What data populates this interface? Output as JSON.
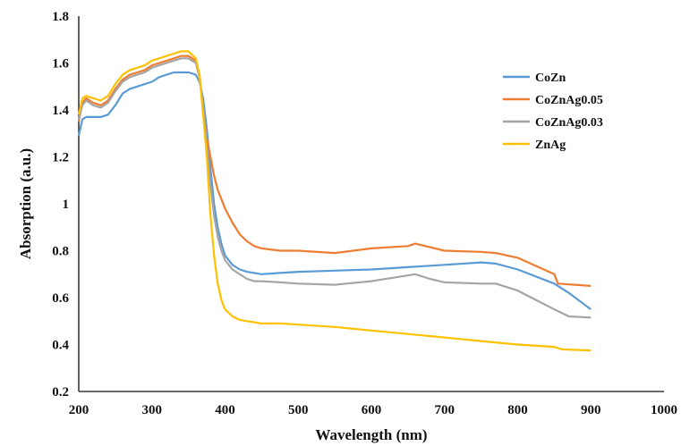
{
  "chart_data": {
    "type": "line",
    "title": "",
    "xlabel": "Wavelength (nm)",
    "ylabel": "Absorption (a.u.)",
    "xlim": [
      200,
      1000
    ],
    "ylim": [
      0.2,
      1.8
    ],
    "xticks": [
      "200",
      "300",
      "400",
      "500",
      "600",
      "700",
      "800",
      "900",
      "1000"
    ],
    "yticks": [
      "0.2",
      "0.4",
      "0.6",
      "0.8",
      "1",
      "1.2",
      "1.4",
      "1.6",
      "1.8"
    ],
    "grid": false,
    "legend_position": "right",
    "series": [
      {
        "name": "CoZn",
        "color": "#5B9BD5",
        "x": [
          200,
          205,
          210,
          220,
          230,
          240,
          250,
          260,
          270,
          280,
          290,
          300,
          310,
          320,
          330,
          340,
          350,
          360,
          365,
          370,
          375,
          380,
          385,
          390,
          395,
          400,
          410,
          420,
          430,
          440,
          450,
          475,
          500,
          550,
          600,
          650,
          700,
          750,
          770,
          800,
          850,
          870,
          900
        ],
        "y": [
          1.29,
          1.36,
          1.37,
          1.37,
          1.37,
          1.38,
          1.42,
          1.47,
          1.49,
          1.5,
          1.51,
          1.52,
          1.54,
          1.55,
          1.56,
          1.56,
          1.56,
          1.55,
          1.52,
          1.45,
          1.32,
          1.15,
          1.0,
          0.9,
          0.83,
          0.78,
          0.74,
          0.72,
          0.71,
          0.705,
          0.7,
          0.705,
          0.71,
          0.715,
          0.72,
          0.73,
          0.74,
          0.75,
          0.745,
          0.72,
          0.66,
          0.62,
          0.55
        ]
      },
      {
        "name": "CoZnAg0.05",
        "color": "#ED7D31",
        "x": [
          200,
          205,
          210,
          220,
          230,
          240,
          250,
          260,
          270,
          280,
          290,
          300,
          310,
          320,
          330,
          340,
          350,
          360,
          365,
          370,
          375,
          380,
          385,
          390,
          395,
          400,
          410,
          420,
          430,
          440,
          450,
          475,
          500,
          550,
          600,
          650,
          660,
          700,
          750,
          770,
          800,
          850,
          855,
          900
        ],
        "y": [
          1.35,
          1.43,
          1.45,
          1.43,
          1.42,
          1.44,
          1.49,
          1.53,
          1.55,
          1.56,
          1.57,
          1.59,
          1.6,
          1.61,
          1.62,
          1.63,
          1.63,
          1.61,
          1.55,
          1.4,
          1.28,
          1.2,
          1.12,
          1.06,
          1.02,
          0.98,
          0.92,
          0.87,
          0.84,
          0.82,
          0.81,
          0.8,
          0.8,
          0.79,
          0.81,
          0.82,
          0.83,
          0.8,
          0.795,
          0.79,
          0.77,
          0.7,
          0.66,
          0.65
        ]
      },
      {
        "name": "CoZnAg0.03",
        "color": "#A5A5A5",
        "x": [
          200,
          205,
          210,
          220,
          230,
          240,
          250,
          260,
          270,
          280,
          290,
          300,
          310,
          320,
          330,
          340,
          350,
          360,
          365,
          370,
          375,
          380,
          385,
          390,
          395,
          400,
          410,
          420,
          430,
          440,
          450,
          475,
          500,
          550,
          600,
          640,
          660,
          680,
          700,
          750,
          770,
          800,
          850,
          870,
          900
        ],
        "y": [
          1.36,
          1.42,
          1.44,
          1.42,
          1.41,
          1.43,
          1.48,
          1.52,
          1.54,
          1.55,
          1.56,
          1.58,
          1.59,
          1.6,
          1.61,
          1.62,
          1.62,
          1.6,
          1.54,
          1.42,
          1.25,
          1.08,
          0.95,
          0.86,
          0.8,
          0.76,
          0.72,
          0.7,
          0.68,
          0.67,
          0.67,
          0.665,
          0.66,
          0.655,
          0.67,
          0.69,
          0.7,
          0.68,
          0.665,
          0.66,
          0.66,
          0.63,
          0.55,
          0.52,
          0.515
        ]
      },
      {
        "name": "ZnAg",
        "color": "#FFC000",
        "x": [
          200,
          205,
          210,
          220,
          230,
          240,
          250,
          260,
          270,
          280,
          290,
          300,
          310,
          320,
          330,
          340,
          350,
          360,
          365,
          370,
          375,
          380,
          385,
          390,
          395,
          400,
          410,
          420,
          430,
          440,
          450,
          475,
          500,
          550,
          600,
          650,
          700,
          750,
          800,
          850,
          860,
          900
        ],
        "y": [
          1.38,
          1.45,
          1.46,
          1.45,
          1.44,
          1.46,
          1.51,
          1.55,
          1.57,
          1.58,
          1.59,
          1.61,
          1.62,
          1.63,
          1.64,
          1.65,
          1.65,
          1.62,
          1.55,
          1.38,
          1.2,
          0.95,
          0.78,
          0.66,
          0.59,
          0.55,
          0.52,
          0.505,
          0.5,
          0.495,
          0.49,
          0.49,
          0.485,
          0.475,
          0.46,
          0.445,
          0.43,
          0.415,
          0.4,
          0.39,
          0.38,
          0.375
        ]
      }
    ]
  }
}
